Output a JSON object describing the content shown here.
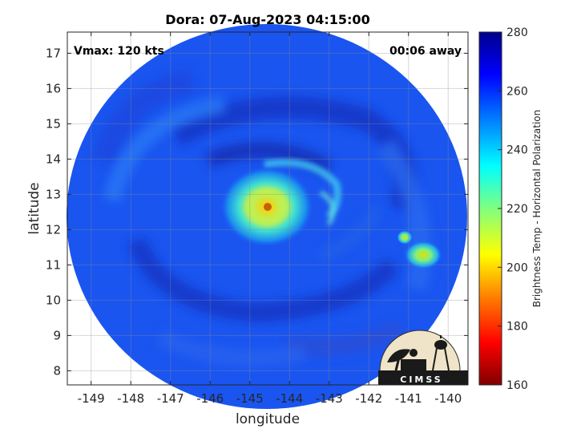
{
  "title": "Dora: 07-Aug-2023 04:15:00",
  "vmax_label": "Vmax: 120 kts",
  "time_label": "00:06 away",
  "logo_text": "CIMSS",
  "colors": {
    "background_ocean": "#1a3cf0",
    "eye": "#cc7a00",
    "eyewall": "#c8f050",
    "colormap": [
      "#800000",
      "#ff0000",
      "#ff8000",
      "#ffff00",
      "#80ff80",
      "#00ffff",
      "#0080ff",
      "#0000ff",
      "#00008c"
    ]
  },
  "chart_data": {
    "type": "heatmap",
    "title": "Dora: 07-Aug-2023 04:15:00",
    "xlabel": "longitude",
    "ylabel": "latitude",
    "xlim": [
      -149.6,
      -139.5
    ],
    "ylim": [
      7.6,
      17.6
    ],
    "x_ticks": [
      -149,
      -148,
      -147,
      -146,
      -145,
      -144,
      -143,
      -142,
      -141,
      -140
    ],
    "y_ticks": [
      8,
      9,
      10,
      11,
      12,
      13,
      14,
      15,
      16,
      17
    ],
    "grid": true,
    "colorbar": {
      "label": "Brightness Temp - Horizontal Polarization",
      "range": [
        160,
        280
      ],
      "ticks": [
        160,
        180,
        200,
        220,
        240,
        260,
        280
      ],
      "placement": "right"
    },
    "features": [
      {
        "kind": "storm-center",
        "lon": -144.5,
        "lat": 12.6
      },
      {
        "kind": "convection",
        "lon": -140.8,
        "lat": 11.3
      }
    ]
  }
}
